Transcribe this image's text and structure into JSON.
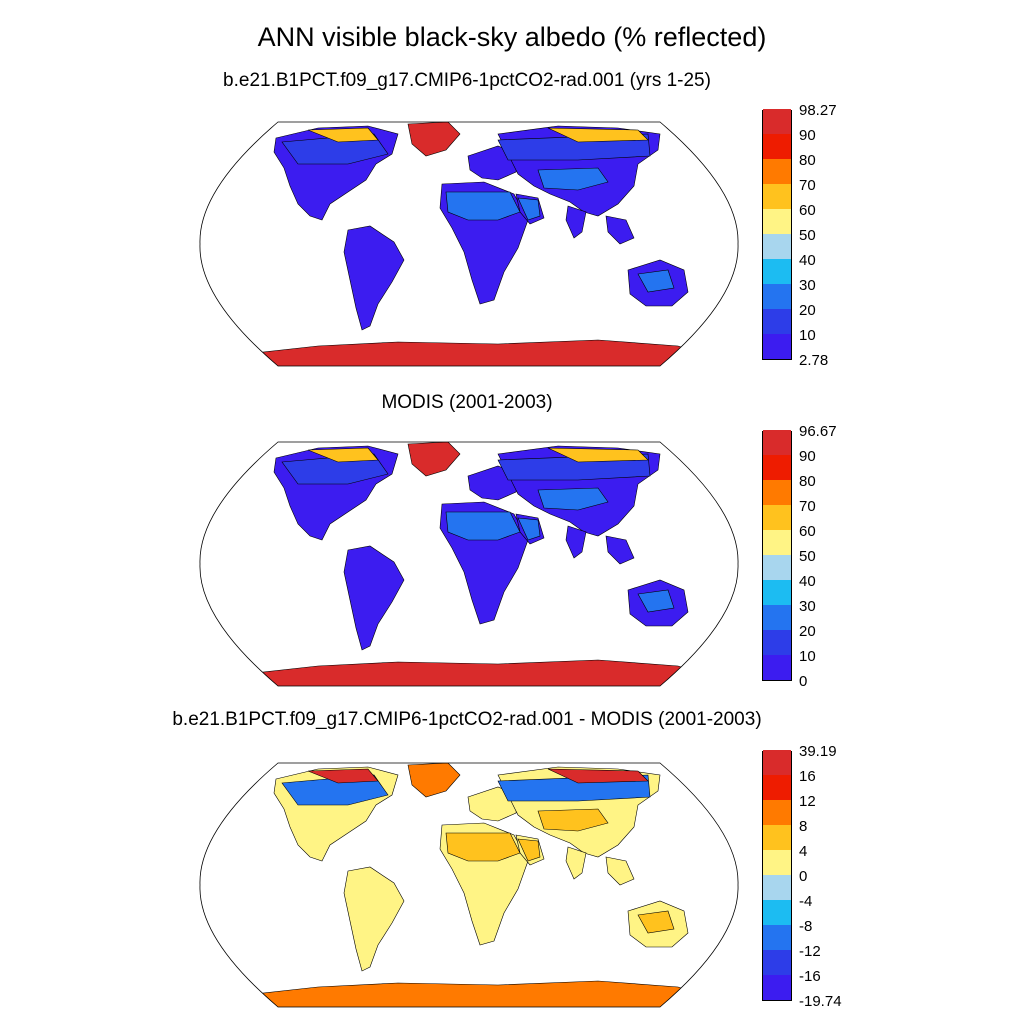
{
  "title": "ANN visible black-sky albedo (% reflected)",
  "palettes": {
    "albedo": [
      "#3c1cf0",
      "#2d3de8",
      "#2474f0",
      "#1cbcf2",
      "#a8d6ee",
      "#fff485",
      "#ffc21e",
      "#ff7a00",
      "#ee1c00",
      "#d92b2b"
    ],
    "diff": [
      "#3c1cf0",
      "#2d3de8",
      "#2474f0",
      "#1cbcf2",
      "#a8d6ee",
      "#fff485",
      "#ffc21e",
      "#ff7a00",
      "#ee1c00",
      "#d92b2b"
    ]
  },
  "panels": [
    {
      "id": "model",
      "title": "b.e21.B1PCT.f09_g17.CMIP6-1pctCO2-rad.001 (yrs 1-25)",
      "colorbar_labels": [
        "98.27",
        "90",
        "80",
        "70",
        "60",
        "50",
        "40",
        "30",
        "20",
        "10",
        "2.78"
      ],
      "colors": {
        "land": "#3c1cf0",
        "desert": "#2474f0",
        "polar": "#d92b2b",
        "arctic": "#ffc21e",
        "boreal": "#2d3de8"
      }
    },
    {
      "id": "modis",
      "title": "MODIS (2001-2003)",
      "colorbar_labels": [
        "96.67",
        "90",
        "80",
        "70",
        "60",
        "50",
        "40",
        "30",
        "20",
        "10",
        "0"
      ],
      "colors": {
        "land": "#3c1cf0",
        "desert": "#2474f0",
        "polar": "#d92b2b",
        "arctic": "#ffc21e",
        "boreal": "#2d3de8"
      }
    },
    {
      "id": "diff",
      "title": "b.e21.B1PCT.f09_g17.CMIP6-1pctCO2-rad.001 - MODIS (2001-2003)",
      "colorbar_labels": [
        "39.19",
        "16",
        "12",
        "8",
        "4",
        "0",
        "-4",
        "-8",
        "-12",
        "-16",
        "-19.74"
      ],
      "colors": {
        "land": "#fff485",
        "desert": "#ffc21e",
        "polar": "#ff7a00",
        "arctic": "#d92b2b",
        "boreal": "#2474f0"
      }
    }
  ]
}
